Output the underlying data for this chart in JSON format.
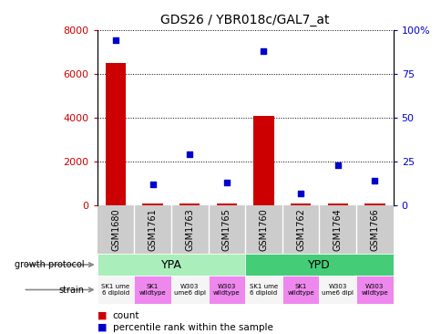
{
  "title": "GDS26 / YBR018c/GAL7_at",
  "samples": [
    "GSM1680",
    "GSM1761",
    "GSM1763",
    "GSM1765",
    "GSM1760",
    "GSM1762",
    "GSM1764",
    "GSM1766"
  ],
  "counts": [
    6500,
    100,
    100,
    100,
    4100,
    100,
    100,
    100
  ],
  "percentiles": [
    94,
    12,
    29,
    13,
    88,
    7,
    23,
    14
  ],
  "ylim_left": [
    0,
    8000
  ],
  "ylim_right": [
    0,
    100
  ],
  "yticks_left": [
    0,
    2000,
    4000,
    6000,
    8000
  ],
  "yticks_right": [
    0,
    25,
    50,
    75,
    100
  ],
  "growth_groups": [
    {
      "label": "YPA",
      "start": 0,
      "end": 4,
      "color": "#aaeebb"
    },
    {
      "label": "YPD",
      "start": 4,
      "end": 8,
      "color": "#44cc77"
    }
  ],
  "strains": [
    {
      "label": "SK1 ume\n6 diploid",
      "color": "#f5f5f5"
    },
    {
      "label": "SK1\nwildtype",
      "color": "#ee88ee"
    },
    {
      "label": "W303\nume6 dipl",
      "color": "#f5f5f5"
    },
    {
      "label": "W303\nwildtype",
      "color": "#ee88ee"
    },
    {
      "label": "SK1 ume\n6 diploid",
      "color": "#f5f5f5"
    },
    {
      "label": "SK1\nwildtype",
      "color": "#ee88ee"
    },
    {
      "label": "W303\nume6 dipl",
      "color": "#f5f5f5"
    },
    {
      "label": "W303\nwildtype",
      "color": "#ee88ee"
    }
  ],
  "bar_color": "#cc0000",
  "dot_color": "#0000cc",
  "left_tick_color": "#cc0000",
  "right_tick_color": "#0000cc",
  "sample_box_color": "#cccccc",
  "background_color": "#ffffff"
}
